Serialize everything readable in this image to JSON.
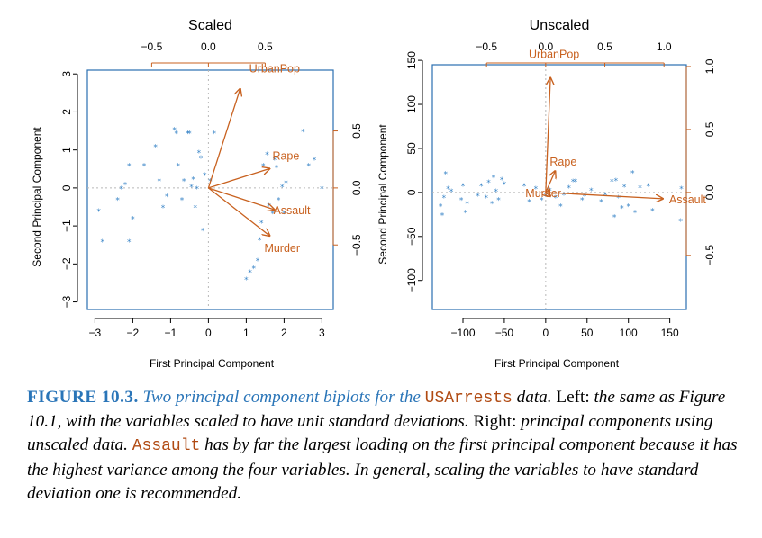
{
  "caption": {
    "figure_number": "FIGURE 10.3.",
    "title_text": "Two principal component biplots for the",
    "dataset_name": "USArrests",
    "title_end": "data.",
    "left_label": "Left:",
    "left_text": "the same as Figure 10.1, with the variables scaled to have unit standard deviations.",
    "right_label": "Right:",
    "right_text": "principal components using unscaled data.",
    "highlight_variable": "Assault",
    "rest_text": "has by far the largest loading on the first principal component because it has the highest variance among the four variables. In general, scaling the variables to have standard deviation one is recommended."
  },
  "chart_data": [
    {
      "type": "scatter",
      "subtype": "biplot",
      "title": "Scaled",
      "xlabel": "First Principal Component",
      "ylabel": "Second Principal Component",
      "xlim": [
        -3.2,
        3.3
      ],
      "ylim": [
        -3.2,
        3.1
      ],
      "x_ticks": [
        -3,
        -2,
        -1,
        0,
        1,
        2,
        3
      ],
      "y_ticks": [
        -3,
        -2,
        -1,
        0,
        1,
        2,
        3
      ],
      "loading_axis_top": {
        "ticks": [
          -0.5,
          0.0,
          0.5
        ],
        "tick_labels": [
          "−0.5",
          "0.0",
          "0.5"
        ]
      },
      "loading_axis_right": {
        "ticks": [
          -0.5,
          0.0,
          0.5
        ],
        "tick_labels": [
          "−0.5",
          "0.0",
          "0.5"
        ]
      },
      "loading_scale": 3.0,
      "grid": false,
      "point_marker": "*",
      "point_color": "#3b86c8",
      "arrow_color": "#c8611f",
      "points": [
        [
          -2.9,
          -0.6
        ],
        [
          -2.8,
          -1.4
        ],
        [
          -2.4,
          -0.3
        ],
        [
          -2.3,
          0.0
        ],
        [
          -2.2,
          0.1
        ],
        [
          -2.1,
          0.6
        ],
        [
          -2.1,
          -1.4
        ],
        [
          -2.0,
          -0.8
        ],
        [
          -1.7,
          0.6
        ],
        [
          -1.4,
          1.1
        ],
        [
          -1.3,
          0.2
        ],
        [
          -1.2,
          -0.5
        ],
        [
          -1.1,
          -0.2
        ],
        [
          -0.9,
          1.55
        ],
        [
          -0.85,
          1.45
        ],
        [
          -0.8,
          0.6
        ],
        [
          -0.7,
          -0.3
        ],
        [
          -0.65,
          0.2
        ],
        [
          -0.55,
          1.45
        ],
        [
          -0.5,
          1.45
        ],
        [
          -0.45,
          0.05
        ],
        [
          -0.4,
          0.25
        ],
        [
          -0.35,
          -0.5
        ],
        [
          -0.3,
          0.0
        ],
        [
          -0.25,
          0.95
        ],
        [
          -0.2,
          0.8
        ],
        [
          -0.15,
          -1.1
        ],
        [
          -0.1,
          0.35
        ],
        [
          0.05,
          0.2
        ],
        [
          0.15,
          1.45
        ],
        [
          1.0,
          -2.4
        ],
        [
          1.1,
          -2.2
        ],
        [
          1.2,
          -2.1
        ],
        [
          1.3,
          -1.9
        ],
        [
          1.35,
          -1.35
        ],
        [
          1.4,
          -0.9
        ],
        [
          1.45,
          0.6
        ],
        [
          1.55,
          0.9
        ],
        [
          1.6,
          -0.45
        ],
        [
          1.7,
          -0.65
        ],
        [
          1.75,
          0.75
        ],
        [
          1.8,
          0.55
        ],
        [
          1.85,
          -0.3
        ],
        [
          1.95,
          0.05
        ],
        [
          2.0,
          -0.65
        ],
        [
          2.05,
          0.15
        ],
        [
          2.5,
          1.5
        ],
        [
          2.65,
          0.6
        ],
        [
          2.8,
          0.75
        ],
        [
          3.0,
          0.0
        ]
      ],
      "loadings": [
        {
          "name": "UrbanPop",
          "pc1": 0.28,
          "pc2": 0.87
        },
        {
          "name": "Rape",
          "pc1": 0.54,
          "pc2": 0.17
        },
        {
          "name": "Assault",
          "pc1": 0.58,
          "pc2": -0.19
        },
        {
          "name": "Murder",
          "pc1": 0.54,
          "pc2": -0.42
        }
      ]
    },
    {
      "type": "scatter",
      "subtype": "biplot",
      "title": "Unscaled",
      "xlabel": "First Principal Component",
      "ylabel": "Second Principal Component",
      "xlim": [
        -137,
        170
      ],
      "ylim": [
        -133,
        145
      ],
      "x_ticks": [
        -100,
        -50,
        0,
        50,
        100,
        150
      ],
      "y_ticks": [
        -100,
        -50,
        0,
        50,
        100,
        150
      ],
      "loading_axis_top": {
        "ticks": [
          -0.5,
          0.0,
          0.5,
          1.0
        ],
        "tick_labels": [
          "−0.5",
          "0.0",
          "0.5",
          "1.0"
        ]
      },
      "loading_axis_right": {
        "ticks": [
          -0.5,
          0.0,
          0.5,
          1.0
        ],
        "tick_labels": [
          "−0.5",
          "0.0",
          "0.5",
          "1.0"
        ]
      },
      "loading_scale": 143,
      "grid": false,
      "point_marker": "*",
      "point_color": "#3b86c8",
      "arrow_color": "#c8611f",
      "points": [
        [
          -127,
          -15
        ],
        [
          -125,
          -25
        ],
        [
          -123,
          -5
        ],
        [
          -121,
          22
        ],
        [
          -118,
          5
        ],
        [
          -114,
          2
        ],
        [
          -102,
          -8
        ],
        [
          -100,
          8
        ],
        [
          -97,
          -22
        ],
        [
          -95,
          -12
        ],
        [
          -82,
          -3
        ],
        [
          -78,
          8
        ],
        [
          -72,
          -5
        ],
        [
          -69,
          12
        ],
        [
          -65,
          -12
        ],
        [
          -63,
          18
        ],
        [
          -60,
          2
        ],
        [
          -57,
          -8
        ],
        [
          -53,
          15
        ],
        [
          -50,
          10
        ],
        [
          -26,
          8
        ],
        [
          -20,
          -10
        ],
        [
          -12,
          5
        ],
        [
          -5,
          -8
        ],
        [
          0,
          -3
        ],
        [
          5,
          3
        ],
        [
          12,
          -5
        ],
        [
          18,
          -15
        ],
        [
          22,
          -2
        ],
        [
          28,
          6
        ],
        [
          33,
          13
        ],
        [
          36,
          13
        ],
        [
          44,
          -8
        ],
        [
          47,
          -3
        ],
        [
          55,
          3
        ],
        [
          67,
          -10
        ],
        [
          72,
          -2
        ],
        [
          80,
          13
        ],
        [
          83,
          -27
        ],
        [
          85,
          14
        ],
        [
          88,
          -5
        ],
        [
          92,
          -17
        ],
        [
          95,
          7
        ],
        [
          100,
          -15
        ],
        [
          105,
          23
        ],
        [
          108,
          -22
        ],
        [
          114,
          6
        ],
        [
          124,
          8
        ],
        [
          129,
          -20
        ],
        [
          164,
          5
        ],
        [
          163,
          -32
        ]
      ],
      "loadings": [
        {
          "name": "UrbanPop",
          "pc1": 0.04,
          "pc2": 0.91
        },
        {
          "name": "Rape",
          "pc1": 0.08,
          "pc2": 0.17
        },
        {
          "name": "Murder",
          "pc1": 0.04,
          "pc2": -0.03
        },
        {
          "name": "Assault",
          "pc1": 0.99,
          "pc2": -0.05
        }
      ]
    }
  ]
}
